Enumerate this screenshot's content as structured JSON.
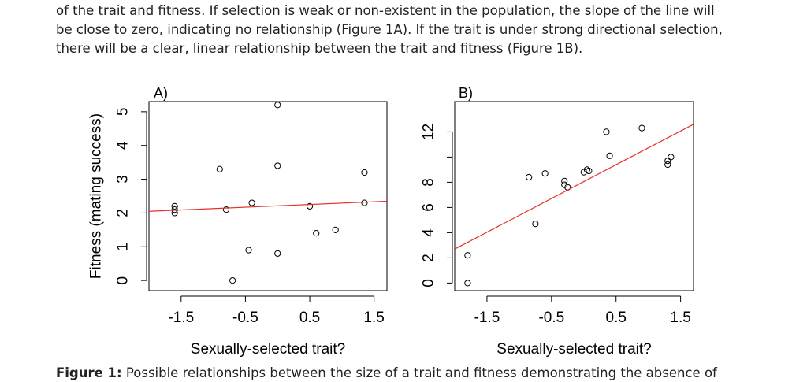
{
  "paragraph": {
    "lines": [
      "of the trait and fitness. If selection is weak or non-existent in the population, the slope of the line will",
      "be close to zero, indicating no relationship (Figure 1A). If the trait is under strong directional selection,",
      "there will be a clear, linear relationship between the trait and fitness (Figure 1B)."
    ]
  },
  "caption": {
    "label": "Figure 1:",
    "text": " Possible relationships between the size of a trait and fitness demonstrating the absence of"
  },
  "chart_data": [
    {
      "type": "scatter",
      "panel_label": "A)",
      "title": "A)",
      "xlabel": "Sexually-selected trait?",
      "ylabel": "Fitness (mating success)",
      "xlim": [
        -2.0,
        1.7
      ],
      "ylim": [
        -0.3,
        5.3
      ],
      "x_ticks": [
        -1.5,
        -0.5,
        0.5,
        1.5
      ],
      "x_tick_labels": [
        "-1.5",
        "-0.5",
        "0.5",
        "1.5"
      ],
      "y_ticks": [
        0,
        1,
        2,
        3,
        4,
        5
      ],
      "y_tick_labels": [
        "0",
        "1",
        "2",
        "3",
        "4",
        "5"
      ],
      "points": [
        [
          -1.6,
          2.0
        ],
        [
          -1.6,
          2.1
        ],
        [
          -1.6,
          2.2
        ],
        [
          -0.9,
          3.3
        ],
        [
          -0.8,
          2.1
        ],
        [
          -0.7,
          0.0
        ],
        [
          -0.45,
          0.9
        ],
        [
          -0.4,
          2.3
        ],
        [
          0.0,
          5.2
        ],
        [
          0.0,
          0.8
        ],
        [
          0.0,
          3.4
        ],
        [
          0.5,
          2.2
        ],
        [
          0.6,
          1.4
        ],
        [
          0.9,
          1.5
        ],
        [
          1.35,
          3.2
        ],
        [
          1.35,
          2.3
        ]
      ],
      "fit_line": {
        "x": [
          -2.0,
          1.7
        ],
        "y": [
          2.05,
          2.35
        ],
        "color": "#e8302a"
      }
    },
    {
      "type": "scatter",
      "panel_label": "B)",
      "title": "B)",
      "xlabel": "Sexually-selected trait?",
      "ylabel": "",
      "xlim": [
        -2.0,
        1.7
      ],
      "ylim": [
        -0.6,
        14.4
      ],
      "x_ticks": [
        -1.5,
        -0.5,
        0.5,
        1.5
      ],
      "x_tick_labels": [
        "-1.5",
        "-0.5",
        "0.5",
        "1.5"
      ],
      "y_ticks": [
        0,
        2,
        4,
        6,
        8,
        10,
        12
      ],
      "y_tick_labels": [
        "0",
        "2",
        "4",
        "6",
        "8",
        "",
        "12"
      ],
      "points": [
        [
          -1.8,
          0.0
        ],
        [
          -1.8,
          2.2
        ],
        [
          -0.85,
          8.4
        ],
        [
          -0.75,
          4.7
        ],
        [
          -0.6,
          8.7
        ],
        [
          -0.3,
          8.1
        ],
        [
          -0.3,
          7.8
        ],
        [
          -0.25,
          7.6
        ],
        [
          0.0,
          8.8
        ],
        [
          0.05,
          9.0
        ],
        [
          0.08,
          8.9
        ],
        [
          0.35,
          12.0
        ],
        [
          0.4,
          10.1
        ],
        [
          0.9,
          12.3
        ],
        [
          1.3,
          9.4
        ],
        [
          1.3,
          9.7
        ],
        [
          1.35,
          10.0
        ]
      ],
      "fit_line": {
        "x": [
          -2.0,
          1.7
        ],
        "y": [
          2.7,
          12.6
        ],
        "color": "#e8302a"
      }
    }
  ]
}
